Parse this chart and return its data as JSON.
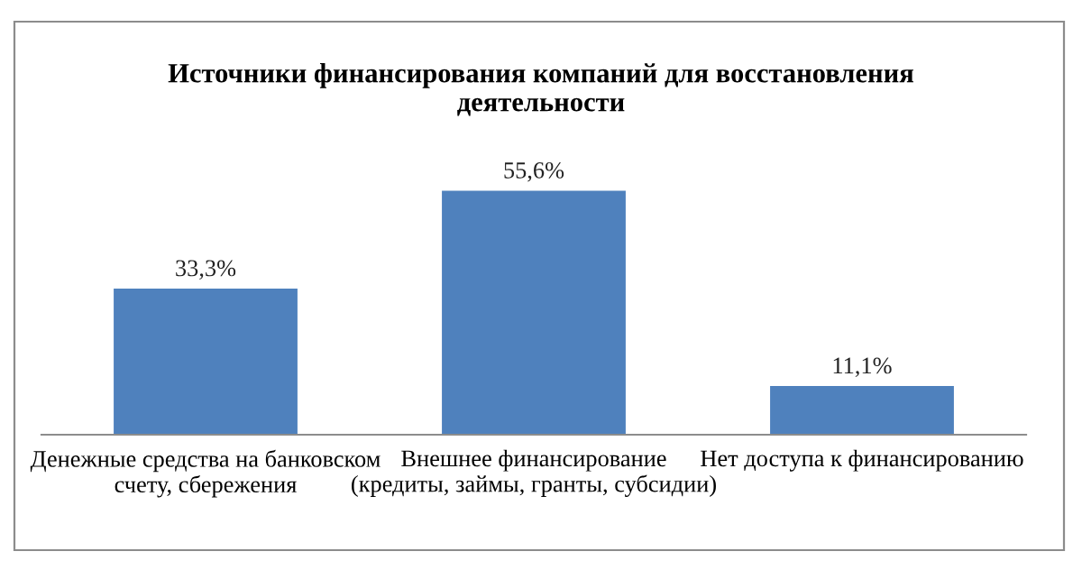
{
  "chart_data": {
    "type": "bar",
    "title": "Источники финансирования компаний для восстановления\nдеятельности",
    "categories": [
      "Денежные средства на банковском\nсчету, сбережения",
      "Внешнее финансирование\n(кредиты, займы, гранты, субсидии)",
      "Нет доступа к финансированию"
    ],
    "values": [
      33.3,
      55.6,
      11.1
    ],
    "value_labels": [
      "33,3%",
      "55,6%",
      "11,1%"
    ],
    "color": "#4f81bd",
    "grid": false,
    "legend": false
  }
}
